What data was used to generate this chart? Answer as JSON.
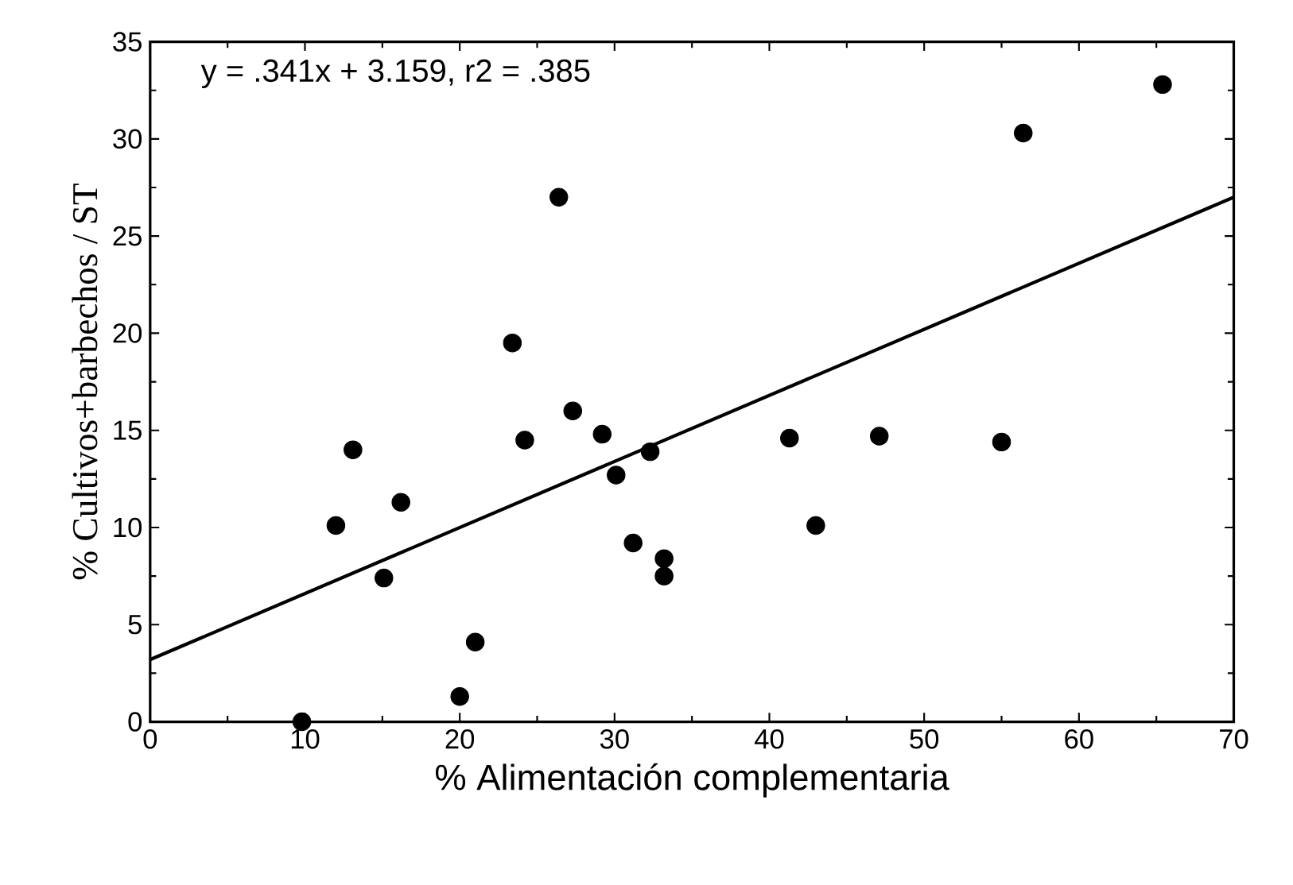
{
  "chart_data": {
    "type": "scatter",
    "xlabel": "% Alimentación complementaria",
    "ylabel": "% Cultivos+barbechos / ST",
    "annotations": [
      "y = .341x + 3.159,     r2 = .385"
    ],
    "series": [
      {
        "color": "#000000",
        "marker": "circle",
        "x": [
          9.8,
          12.0,
          13.1,
          15.1,
          16.2,
          20.0,
          21.0,
          23.4,
          24.2,
          26.4,
          27.3,
          29.2,
          30.1,
          31.2,
          32.3,
          33.2,
          33.2,
          41.3,
          43.0,
          47.1,
          55.0,
          56.4,
          65.4
        ],
        "values": [
          0,
          10.1,
          14.0,
          7.4,
          11.3,
          1.3,
          4.1,
          19.5,
          14.5,
          27.0,
          16.0,
          14.8,
          12.7,
          9.2,
          13.9,
          8.4,
          7.5,
          14.6,
          10.1,
          14.7,
          14.4,
          30.3,
          32.8
        ]
      },
      {
        "type": "line",
        "color": "#000000",
        "marker": "none",
        "x": [
          0,
          70
        ],
        "values": [
          3.2,
          27.0
        ]
      }
    ],
    "xlim": [
      0,
      70
    ],
    "ylim": [
      0,
      35
    ],
    "xticks": [
      0,
      10,
      20,
      30,
      40,
      50,
      60,
      70
    ],
    "yticks": [
      0,
      5,
      10,
      15,
      20,
      25,
      30,
      35
    ],
    "grid": false,
    "legend": false
  }
}
